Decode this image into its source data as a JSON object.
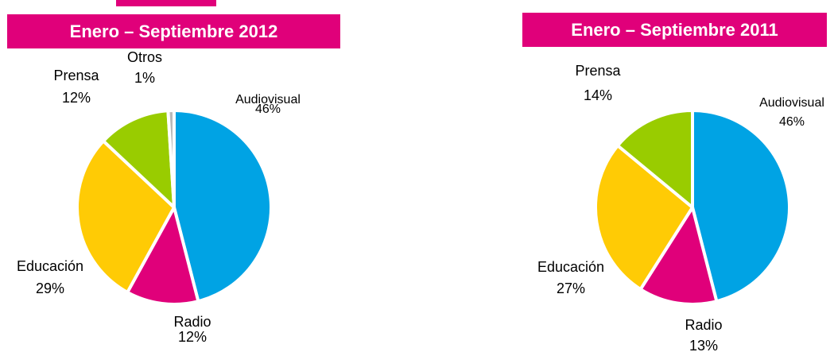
{
  "colors": {
    "banner": "#e0007a",
    "Audiovisual": "#00a3e4",
    "Radio": "#e0007a",
    "Educación": "#ffcb05",
    "Prensa": "#99cc00",
    "Otros": "#b9b9b9"
  },
  "chart_data": [
    {
      "type": "pie",
      "title": "Enero – Septiembre 2012",
      "slices": [
        {
          "label": "Audiovisual",
          "value": 46,
          "text": "46%"
        },
        {
          "label": "Radio",
          "value": 12,
          "text": "12%"
        },
        {
          "label": "Educación",
          "value": 29,
          "text": "29%"
        },
        {
          "label": "Prensa",
          "value": 12,
          "text": "12%"
        },
        {
          "label": "Otros",
          "value": 1,
          "text": "1%"
        }
      ]
    },
    {
      "type": "pie",
      "title": "Enero – Septiembre 2011",
      "slices": [
        {
          "label": "Audiovisual",
          "value": 46,
          "text": "46%"
        },
        {
          "label": "Radio",
          "value": 13,
          "text": "13%"
        },
        {
          "label": "Educación",
          "value": 27,
          "text": "27%"
        },
        {
          "label": "Prensa",
          "value": 14,
          "text": "14%"
        }
      ]
    }
  ]
}
